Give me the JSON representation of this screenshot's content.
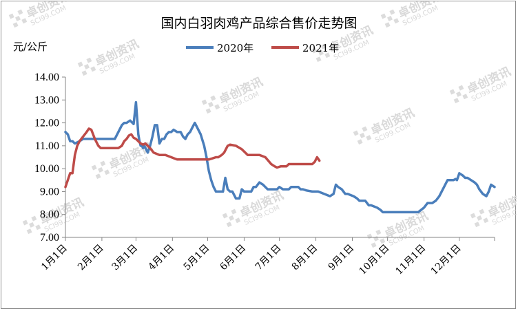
{
  "chart_data": {
    "type": "line",
    "title": "国内白羽肉鸡产品综合售价走势图",
    "ylabel": "元/公斤",
    "xlabel": "",
    "ylim": [
      7.0,
      14.0
    ],
    "yticks": [
      "7.00",
      "8.00",
      "9.00",
      "10.00",
      "11.00",
      "12.00",
      "13.00",
      "14.00"
    ],
    "xlim": [
      0,
      365
    ],
    "xticks": [
      {
        "label": "1月1日",
        "day": 0
      },
      {
        "label": "2月1日",
        "day": 31
      },
      {
        "label": "3月1日",
        "day": 60
      },
      {
        "label": "4月1日",
        "day": 91
      },
      {
        "label": "5月1日",
        "day": 121
      },
      {
        "label": "6月1日",
        "day": 152
      },
      {
        "label": "7月1日",
        "day": 182
      },
      {
        "label": "8月1日",
        "day": 213
      },
      {
        "label": "9月1日",
        "day": 244
      },
      {
        "label": "10月1日",
        "day": 274
      },
      {
        "label": "11月1日",
        "day": 305
      },
      {
        "label": "12月1日",
        "day": 335
      }
    ],
    "grid": false,
    "legend_position": "top-center",
    "series": [
      {
        "name": "2020年",
        "color": "#4a7ebb",
        "x": [
          0,
          2,
          4,
          6,
          8,
          10,
          12,
          15,
          18,
          20,
          22,
          25,
          28,
          31,
          35,
          40,
          42,
          45,
          48,
          50,
          52,
          55,
          58,
          60,
          62,
          63,
          64,
          65,
          66,
          67,
          68,
          70,
          72,
          74,
          76,
          78,
          80,
          82,
          84,
          86,
          88,
          90,
          92,
          95,
          98,
          100,
          102,
          104,
          106,
          108,
          110,
          112,
          115,
          118,
          120,
          122,
          124,
          126,
          128,
          130,
          132,
          134,
          135,
          136,
          138,
          140,
          142,
          145,
          148,
          150,
          152,
          155,
          158,
          160,
          162,
          165,
          168,
          170,
          172,
          175,
          178,
          180,
          182,
          185,
          188,
          190,
          192,
          195,
          198,
          200,
          202,
          205,
          210,
          215,
          220,
          225,
          228,
          230,
          232,
          235,
          238,
          240,
          245,
          248,
          250,
          255,
          258,
          260,
          265,
          268,
          270,
          272,
          274,
          276,
          280,
          290,
          300,
          305,
          308,
          310,
          312,
          315,
          318,
          320,
          322,
          325,
          328,
          330,
          332,
          333,
          335,
          338,
          340,
          342,
          345,
          348,
          350,
          352,
          355,
          358,
          360,
          362,
          365
        ],
        "y": [
          11.6,
          11.5,
          11.2,
          11.2,
          11.1,
          11.15,
          11.2,
          11.3,
          11.3,
          11.3,
          11.3,
          11.3,
          11.3,
          11.3,
          11.3,
          11.3,
          11.3,
          11.6,
          11.9,
          12.0,
          12.0,
          12.1,
          11.95,
          12.9,
          11.5,
          11.2,
          11.0,
          11.0,
          10.9,
          11.0,
          10.9,
          10.7,
          11.0,
          11.4,
          11.9,
          11.9,
          11.1,
          11.3,
          11.3,
          11.5,
          11.6,
          11.6,
          11.7,
          11.6,
          11.6,
          11.4,
          11.3,
          11.5,
          11.6,
          11.8,
          12.0,
          11.8,
          11.5,
          11.0,
          10.5,
          9.9,
          9.5,
          9.2,
          9.0,
          9.0,
          9.0,
          9.0,
          9.3,
          9.6,
          9.1,
          9.0,
          9.0,
          8.7,
          8.7,
          9.1,
          9.0,
          9.0,
          9.0,
          9.2,
          9.2,
          9.4,
          9.3,
          9.2,
          9.1,
          9.1,
          9.1,
          9.1,
          9.2,
          9.1,
          9.1,
          9.1,
          9.2,
          9.2,
          9.2,
          9.1,
          9.1,
          9.05,
          9.0,
          9.0,
          8.9,
          8.8,
          8.9,
          9.3,
          9.2,
          9.1,
          8.9,
          8.9,
          8.8,
          8.7,
          8.6,
          8.6,
          8.4,
          8.4,
          8.3,
          8.2,
          8.1,
          8.1,
          8.1,
          8.1,
          8.1,
          8.1,
          8.1,
          8.3,
          8.5,
          8.5,
          8.5,
          8.6,
          8.8,
          9.0,
          9.2,
          9.5,
          9.5,
          9.5,
          9.55,
          9.5,
          9.8,
          9.7,
          9.6,
          9.6,
          9.5,
          9.4,
          9.3,
          9.1,
          8.9,
          8.8,
          9.0,
          9.3,
          9.2
        ]
      },
      {
        "name": "2021年",
        "color": "#be4b48",
        "x": [
          0,
          2,
          4,
          6,
          8,
          10,
          12,
          15,
          18,
          20,
          22,
          25,
          28,
          30,
          31,
          35,
          40,
          45,
          48,
          50,
          52,
          54,
          56,
          58,
          60,
          62,
          64,
          66,
          68,
          70,
          72,
          75,
          80,
          85,
          90,
          95,
          100,
          105,
          110,
          115,
          120,
          122,
          125,
          128,
          130,
          133,
          135,
          138,
          140,
          145,
          150,
          155,
          160,
          165,
          170,
          175,
          178,
          180,
          183,
          185,
          188,
          190,
          195,
          200,
          205,
          210,
          212,
          214,
          216
        ],
        "y": [
          9.2,
          9.5,
          9.8,
          9.8,
          10.6,
          11.0,
          11.2,
          11.4,
          11.6,
          11.75,
          11.7,
          11.3,
          11.0,
          10.9,
          10.9,
          10.9,
          10.9,
          10.9,
          11.0,
          11.2,
          11.3,
          11.45,
          11.5,
          11.35,
          11.3,
          11.2,
          11.1,
          11.05,
          11.1,
          11.0,
          10.9,
          10.7,
          10.6,
          10.6,
          10.5,
          10.4,
          10.4,
          10.4,
          10.4,
          10.4,
          10.4,
          10.4,
          10.45,
          10.5,
          10.5,
          10.6,
          10.7,
          11.0,
          11.05,
          11.0,
          10.85,
          10.6,
          10.6,
          10.6,
          10.5,
          10.2,
          10.1,
          10.05,
          10.1,
          10.1,
          10.1,
          10.2,
          10.2,
          10.2,
          10.2,
          10.2,
          10.3,
          10.5,
          10.35
        ]
      }
    ]
  },
  "watermark": {
    "text": "卓创资讯",
    "sub": "SCI99.COM"
  }
}
